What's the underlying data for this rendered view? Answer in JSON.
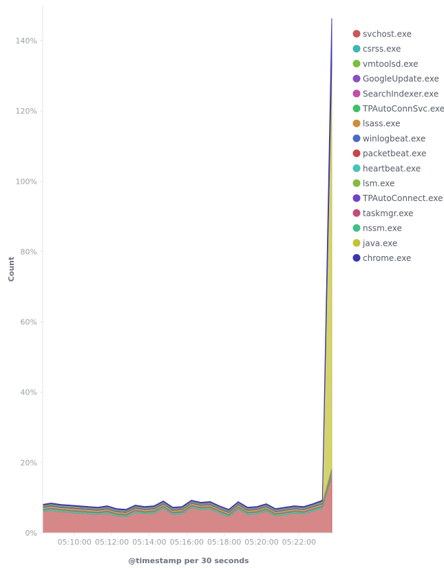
{
  "chart_data": {
    "type": "area",
    "stacked": true,
    "xlabel": "@timestamp per 30 seconds",
    "ylabel": "Count",
    "ylim": [
      0,
      150
    ],
    "y_ticks": [
      "0%",
      "20%",
      "40%",
      "60%",
      "80%",
      "100%",
      "120%",
      "140%"
    ],
    "y_tick_values": [
      0,
      20,
      40,
      60,
      80,
      100,
      120,
      140
    ],
    "x_ticks": [
      "05:10:00",
      "05:12:00",
      "05:14:00",
      "05:16:00",
      "05:18:00",
      "05:20:00",
      "05:22:00"
    ],
    "x_tick_values": [
      310,
      312,
      314,
      316,
      318,
      320,
      322
    ],
    "xlim": [
      308.3,
      323.9
    ],
    "grid": false,
    "legend_position": "right",
    "x": [
      308.3,
      308.75,
      309.25,
      309.75,
      310.25,
      310.75,
      311.25,
      311.75,
      312.25,
      312.75,
      313.25,
      313.75,
      314.25,
      314.75,
      315.25,
      315.75,
      316.25,
      316.75,
      317.25,
      317.75,
      318.25,
      318.75,
      319.25,
      319.75,
      320.25,
      320.75,
      321.25,
      321.75,
      322.25,
      322.75,
      323.25,
      323.75
    ],
    "series": [
      {
        "name": "svchost.exe",
        "color": "#c65a5a",
        "values": [
          6.0,
          6.4,
          6.0,
          5.8,
          5.6,
          5.4,
          5.2,
          5.6,
          4.8,
          4.6,
          5.8,
          5.4,
          5.6,
          7.0,
          5.2,
          5.4,
          7.2,
          6.6,
          6.8,
          5.6,
          4.6,
          6.8,
          5.2,
          5.4,
          6.2,
          4.8,
          5.2,
          5.6,
          5.4,
          6.2,
          7.0,
          16.0
        ]
      },
      {
        "name": "csrss.exe",
        "color": "#3fb6b4",
        "values": [
          0.3,
          0.3,
          0.3,
          0.3,
          0.3,
          0.3,
          0.3,
          0.3,
          0.3,
          0.3,
          0.3,
          0.3,
          0.3,
          0.3,
          0.3,
          0.3,
          0.3,
          0.3,
          0.3,
          0.3,
          0.3,
          0.3,
          0.3,
          0.3,
          0.3,
          0.3,
          0.3,
          0.3,
          0.3,
          0.3,
          0.3,
          0.4
        ]
      },
      {
        "name": "vmtoolsd.exe",
        "color": "#7cbd3f",
        "values": [
          0.2,
          0.2,
          0.2,
          0.2,
          0.2,
          0.2,
          0.2,
          0.2,
          0.2,
          0.2,
          0.2,
          0.2,
          0.2,
          0.2,
          0.2,
          0.2,
          0.2,
          0.2,
          0.2,
          0.2,
          0.2,
          0.2,
          0.2,
          0.2,
          0.2,
          0.2,
          0.2,
          0.2,
          0.2,
          0.2,
          0.2,
          0.3
        ]
      },
      {
        "name": "GoogleUpdate.exe",
        "color": "#8a4fc4",
        "values": [
          0.1,
          0.1,
          0.1,
          0.1,
          0.1,
          0.1,
          0.1,
          0.1,
          0.1,
          0.1,
          0.1,
          0.1,
          0.1,
          0.1,
          0.1,
          0.1,
          0.1,
          0.1,
          0.1,
          0.1,
          0.1,
          0.1,
          0.1,
          0.1,
          0.1,
          0.1,
          0.1,
          0.1,
          0.1,
          0.1,
          0.1,
          0.1
        ]
      },
      {
        "name": "SearchIndexer.exe",
        "color": "#c24fa8",
        "values": [
          0.1,
          0.1,
          0.1,
          0.1,
          0.1,
          0.1,
          0.1,
          0.1,
          0.1,
          0.1,
          0.1,
          0.1,
          0.1,
          0.1,
          0.1,
          0.1,
          0.1,
          0.1,
          0.1,
          0.1,
          0.1,
          0.1,
          0.1,
          0.1,
          0.1,
          0.1,
          0.1,
          0.1,
          0.1,
          0.1,
          0.1,
          0.1
        ]
      },
      {
        "name": "TPAutoConnSvc.exe",
        "color": "#3fbf6a",
        "values": [
          0.1,
          0.1,
          0.1,
          0.1,
          0.1,
          0.1,
          0.1,
          0.1,
          0.1,
          0.1,
          0.1,
          0.1,
          0.1,
          0.1,
          0.1,
          0.1,
          0.1,
          0.1,
          0.1,
          0.1,
          0.1,
          0.1,
          0.1,
          0.1,
          0.1,
          0.1,
          0.1,
          0.1,
          0.1,
          0.1,
          0.1,
          0.1
        ]
      },
      {
        "name": "lsass.exe",
        "color": "#cf8d3a",
        "values": [
          0.4,
          0.4,
          0.4,
          0.4,
          0.4,
          0.4,
          0.4,
          0.4,
          0.4,
          0.4,
          0.4,
          0.4,
          0.4,
          0.4,
          0.4,
          0.4,
          0.4,
          0.4,
          0.4,
          0.4,
          0.4,
          0.4,
          0.4,
          0.4,
          0.4,
          0.4,
          0.4,
          0.4,
          0.4,
          0.4,
          0.4,
          0.5
        ]
      },
      {
        "name": "winlogbeat.exe",
        "color": "#4a6bc0",
        "values": [
          0.2,
          0.2,
          0.2,
          0.2,
          0.2,
          0.2,
          0.2,
          0.2,
          0.2,
          0.2,
          0.2,
          0.2,
          0.2,
          0.2,
          0.2,
          0.2,
          0.2,
          0.2,
          0.2,
          0.2,
          0.2,
          0.2,
          0.2,
          0.2,
          0.2,
          0.2,
          0.2,
          0.2,
          0.2,
          0.2,
          0.2,
          0.3
        ]
      },
      {
        "name": "packetbeat.exe",
        "color": "#c6484a",
        "values": [
          0.1,
          0.1,
          0.1,
          0.1,
          0.1,
          0.1,
          0.1,
          0.1,
          0.1,
          0.1,
          0.1,
          0.1,
          0.1,
          0.1,
          0.1,
          0.1,
          0.1,
          0.1,
          0.1,
          0.1,
          0.1,
          0.1,
          0.1,
          0.1,
          0.1,
          0.1,
          0.1,
          0.1,
          0.1,
          0.1,
          0.1,
          0.1
        ]
      },
      {
        "name": "heartbeat.exe",
        "color": "#45c4b8",
        "values": [
          0.1,
          0.1,
          0.1,
          0.1,
          0.1,
          0.1,
          0.1,
          0.1,
          0.1,
          0.1,
          0.1,
          0.1,
          0.1,
          0.1,
          0.1,
          0.1,
          0.1,
          0.1,
          0.1,
          0.1,
          0.1,
          0.1,
          0.1,
          0.1,
          0.1,
          0.1,
          0.1,
          0.1,
          0.1,
          0.1,
          0.1,
          0.1
        ]
      },
      {
        "name": "lsm.exe",
        "color": "#86b846",
        "values": [
          0.1,
          0.1,
          0.1,
          0.1,
          0.1,
          0.1,
          0.1,
          0.1,
          0.1,
          0.1,
          0.1,
          0.1,
          0.1,
          0.1,
          0.1,
          0.1,
          0.1,
          0.1,
          0.1,
          0.1,
          0.1,
          0.1,
          0.1,
          0.1,
          0.1,
          0.1,
          0.1,
          0.1,
          0.1,
          0.1,
          0.1,
          0.1
        ]
      },
      {
        "name": "TPAutoConnect.exe",
        "color": "#6f43c4",
        "values": [
          0.1,
          0.1,
          0.1,
          0.1,
          0.1,
          0.1,
          0.1,
          0.1,
          0.1,
          0.1,
          0.1,
          0.1,
          0.1,
          0.1,
          0.1,
          0.1,
          0.1,
          0.1,
          0.1,
          0.1,
          0.1,
          0.1,
          0.1,
          0.1,
          0.1,
          0.1,
          0.1,
          0.1,
          0.1,
          0.1,
          0.1,
          0.1
        ]
      },
      {
        "name": "taskmgr.exe",
        "color": "#c64a7a",
        "values": [
          0.0,
          0.0,
          0.0,
          0.0,
          0.0,
          0.0,
          0.0,
          0.0,
          0.0,
          0.0,
          0.0,
          0.0,
          0.0,
          0.0,
          0.0,
          0.0,
          0.0,
          0.0,
          0.0,
          0.0,
          0.0,
          0.0,
          0.0,
          0.0,
          0.0,
          0.0,
          0.0,
          0.0,
          0.0,
          0.0,
          0.0,
          0.1
        ]
      },
      {
        "name": "nssm.exe",
        "color": "#3fbf8a",
        "values": [
          0.0,
          0.0,
          0.0,
          0.0,
          0.0,
          0.0,
          0.0,
          0.0,
          0.0,
          0.0,
          0.0,
          0.0,
          0.0,
          0.0,
          0.0,
          0.0,
          0.0,
          0.0,
          0.0,
          0.0,
          0.0,
          0.0,
          0.0,
          0.0,
          0.0,
          0.0,
          0.0,
          0.0,
          0.0,
          0.0,
          0.0,
          0.1
        ]
      },
      {
        "name": "java.exe",
        "color": "#c3c238",
        "values": [
          0.1,
          0.1,
          0.1,
          0.1,
          0.1,
          0.1,
          0.1,
          0.1,
          0.1,
          0.1,
          0.1,
          0.1,
          0.1,
          0.1,
          0.1,
          0.1,
          0.1,
          0.1,
          0.1,
          0.1,
          0.1,
          0.1,
          0.1,
          0.1,
          0.1,
          0.1,
          0.1,
          0.1,
          0.1,
          0.1,
          0.2,
          115.0
        ]
      },
      {
        "name": "chrome.exe",
        "color": "#3c34b0",
        "values": [
          0.2,
          0.2,
          0.2,
          0.2,
          0.2,
          0.2,
          0.2,
          0.2,
          0.2,
          0.2,
          0.2,
          0.2,
          0.2,
          0.2,
          0.2,
          0.2,
          0.2,
          0.2,
          0.2,
          0.2,
          0.2,
          0.2,
          0.2,
          0.2,
          0.2,
          0.2,
          0.2,
          0.2,
          0.2,
          0.2,
          0.3,
          13.0
        ]
      }
    ]
  }
}
